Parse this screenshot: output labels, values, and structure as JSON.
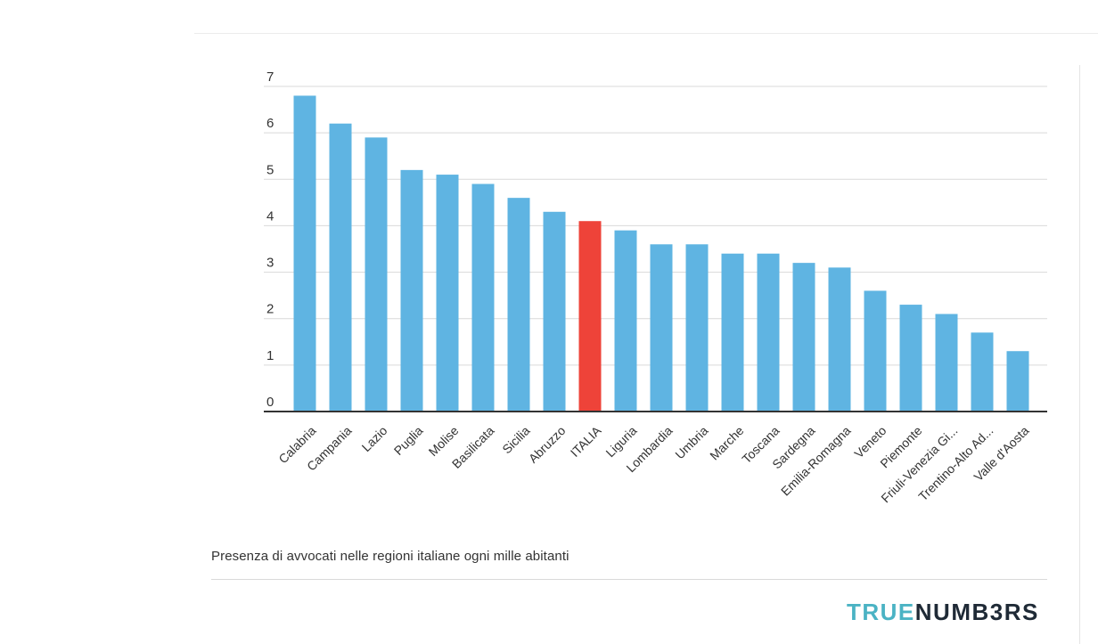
{
  "chart_data": {
    "type": "bar",
    "categories": [
      "Calabria",
      "Campania",
      "Lazio",
      "Puglia",
      "Molise",
      "Basilicata",
      "Sicilia",
      "Abruzzo",
      "ITALIA",
      "Liguria",
      "Lombardia",
      "Umbria",
      "Marche",
      "Toscana",
      "Sardegna",
      "Emilia-Romagna",
      "Veneto",
      "Piemonte",
      "Friuli-Venezia Gi...",
      "Trentino-Alto Ad...",
      "Valle d'Aosta"
    ],
    "values": [
      6.8,
      6.2,
      5.9,
      5.2,
      5.1,
      4.9,
      4.6,
      4.3,
      4.1,
      3.9,
      3.6,
      3.6,
      3.4,
      3.4,
      3.2,
      3.1,
      2.6,
      2.3,
      2.1,
      1.7,
      1.3
    ],
    "highlight": "ITALIA",
    "yticks": [
      0,
      1,
      2,
      3,
      4,
      5,
      6,
      7
    ],
    "ylim": [
      0,
      7
    ],
    "grid": true,
    "colors": {
      "bar": "#5fb4e2",
      "highlight": "#ee4339",
      "grid": "#d9d9d9",
      "axis": "#333333",
      "text": "#333333"
    }
  },
  "caption": "Presenza di avvocati nelle regioni italiane ogni mille abitanti",
  "brand": {
    "part1": "TRUE",
    "part2": "NUMB3RS"
  }
}
